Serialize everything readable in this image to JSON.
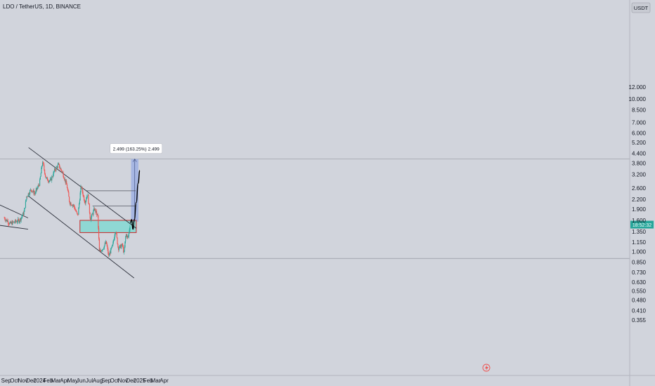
{
  "header": {
    "symbol_line": "LDO / TetherUS, 1D, BINANCE",
    "currency_button": "USDT"
  },
  "colors": {
    "background": "#d1d4dc",
    "up_candle": "#26a69a",
    "down_candle": "#ef5350",
    "trendline": "#2a2e39",
    "demand_zone_fill": "#8fd8d4",
    "demand_zone_border": "#c62828",
    "target_box_fill": "#9fb0e3",
    "projection_line": "#000000"
  },
  "chart_data": {
    "type": "candlestick",
    "y_scale": "log",
    "y_ticks": [
      "12.000",
      "10.000",
      "8.500",
      "7.000",
      "6.000",
      "5.200",
      "4.400",
      "3.800",
      "3.200",
      "2.600",
      "2.200",
      "1.900",
      "1.600",
      "1.350",
      "1.150",
      "1.000",
      "0.850",
      "0.730",
      "0.630",
      "0.550",
      "0.480",
      "0.410",
      "0.355"
    ],
    "x_ticks": [
      "Sep",
      "Oct",
      "Nov",
      "Dec",
      "2024",
      "Feb",
      "Mar",
      "Apr",
      "May",
      "Jun",
      "Jul",
      "Aug",
      "Sep",
      "Oct",
      "Nov",
      "Dec",
      "2025",
      "Feb",
      "Mar",
      "Apr"
    ],
    "last_price_label": "18:52:32",
    "measure_label": "2.499 (163.25%) 2.499",
    "series_keypoints": [
      {
        "date": "2023-08-25",
        "price": 1.66
      },
      {
        "date": "2023-09-15",
        "price": 1.52
      },
      {
        "date": "2023-10-10",
        "price": 1.58
      },
      {
        "date": "2023-10-20",
        "price": 1.6
      },
      {
        "date": "2023-11-05",
        "price": 1.8
      },
      {
        "date": "2023-11-15",
        "price": 2.3
      },
      {
        "date": "2023-12-01",
        "price": 2.55
      },
      {
        "date": "2023-12-15",
        "price": 2.4
      },
      {
        "date": "2024-01-01",
        "price": 2.8
      },
      {
        "date": "2024-01-12",
        "price": 3.9
      },
      {
        "date": "2024-01-25",
        "price": 3.0
      },
      {
        "date": "2024-02-10",
        "price": 2.9
      },
      {
        "date": "2024-02-25",
        "price": 3.4
      },
      {
        "date": "2024-03-10",
        "price": 3.7
      },
      {
        "date": "2024-03-25",
        "price": 3.3
      },
      {
        "date": "2024-04-10",
        "price": 2.7
      },
      {
        "date": "2024-04-20",
        "price": 2.1
      },
      {
        "date": "2024-05-05",
        "price": 2.0
      },
      {
        "date": "2024-05-20",
        "price": 1.7
      },
      {
        "date": "2024-06-01",
        "price": 2.7
      },
      {
        "date": "2024-06-15",
        "price": 2.1
      },
      {
        "date": "2024-06-25",
        "price": 2.4
      },
      {
        "date": "2024-07-05",
        "price": 1.62
      },
      {
        "date": "2024-07-20",
        "price": 1.9
      },
      {
        "date": "2024-08-01",
        "price": 1.7
      },
      {
        "date": "2024-08-07",
        "price": 1.0
      },
      {
        "date": "2024-08-20",
        "price": 1.05
      },
      {
        "date": "2024-09-01",
        "price": 1.15
      },
      {
        "date": "2024-09-10",
        "price": 0.93
      },
      {
        "date": "2024-09-25",
        "price": 1.1
      },
      {
        "date": "2024-10-05",
        "price": 1.4
      },
      {
        "date": "2024-10-15",
        "price": 1.05
      },
      {
        "date": "2024-10-30",
        "price": 1.1
      },
      {
        "date": "2024-11-05",
        "price": 0.97
      },
      {
        "date": "2024-11-12",
        "price": 1.3
      },
      {
        "date": "2024-11-20",
        "price": 1.22
      },
      {
        "date": "2024-11-28",
        "price": 1.53
      }
    ],
    "demand_zone": {
      "from": "2024-05-28",
      "to": "2024-12-20",
      "low": 1.33,
      "high": 1.6
    },
    "target_box": {
      "from": "2024-12-01",
      "to": "2024-12-28",
      "low": 1.57,
      "high": 4.04
    },
    "resistance_levels": [
      {
        "from": "2024-06-21",
        "to": "2024-12-18",
        "price": 2.5
      },
      {
        "from": "2024-07-13",
        "to": "2024-12-20",
        "price": 1.99
      }
    ],
    "horizontal_lines": [
      4.04,
      0.9
    ],
    "trendlines": [
      {
        "from_date": "2023-08-01",
        "from_price": 2.05,
        "to_date": "2023-11-20",
        "to_price": 1.66
      },
      {
        "from_date": "2023-08-01",
        "from_price": 1.49,
        "to_date": "2023-11-20",
        "to_price": 1.4
      },
      {
        "from_date": "2023-11-22",
        "from_price": 4.8,
        "to_date": "2024-12-20",
        "to_price": 1.42
      },
      {
        "from_date": "2023-11-20",
        "from_price": 2.32,
        "to_date": "2024-12-12",
        "to_price": 0.67
      }
    ],
    "projection_path": [
      {
        "date": "2024-11-28",
        "price": 1.54
      },
      {
        "date": "2024-12-03",
        "price": 1.62
      },
      {
        "date": "2024-12-08",
        "price": 1.4
      },
      {
        "date": "2024-12-13",
        "price": 1.62
      },
      {
        "date": "2024-12-20",
        "price": 2.1
      },
      {
        "date": "2024-12-27",
        "price": 2.8
      },
      {
        "date": "2025-01-02",
        "price": 3.4
      }
    ]
  }
}
